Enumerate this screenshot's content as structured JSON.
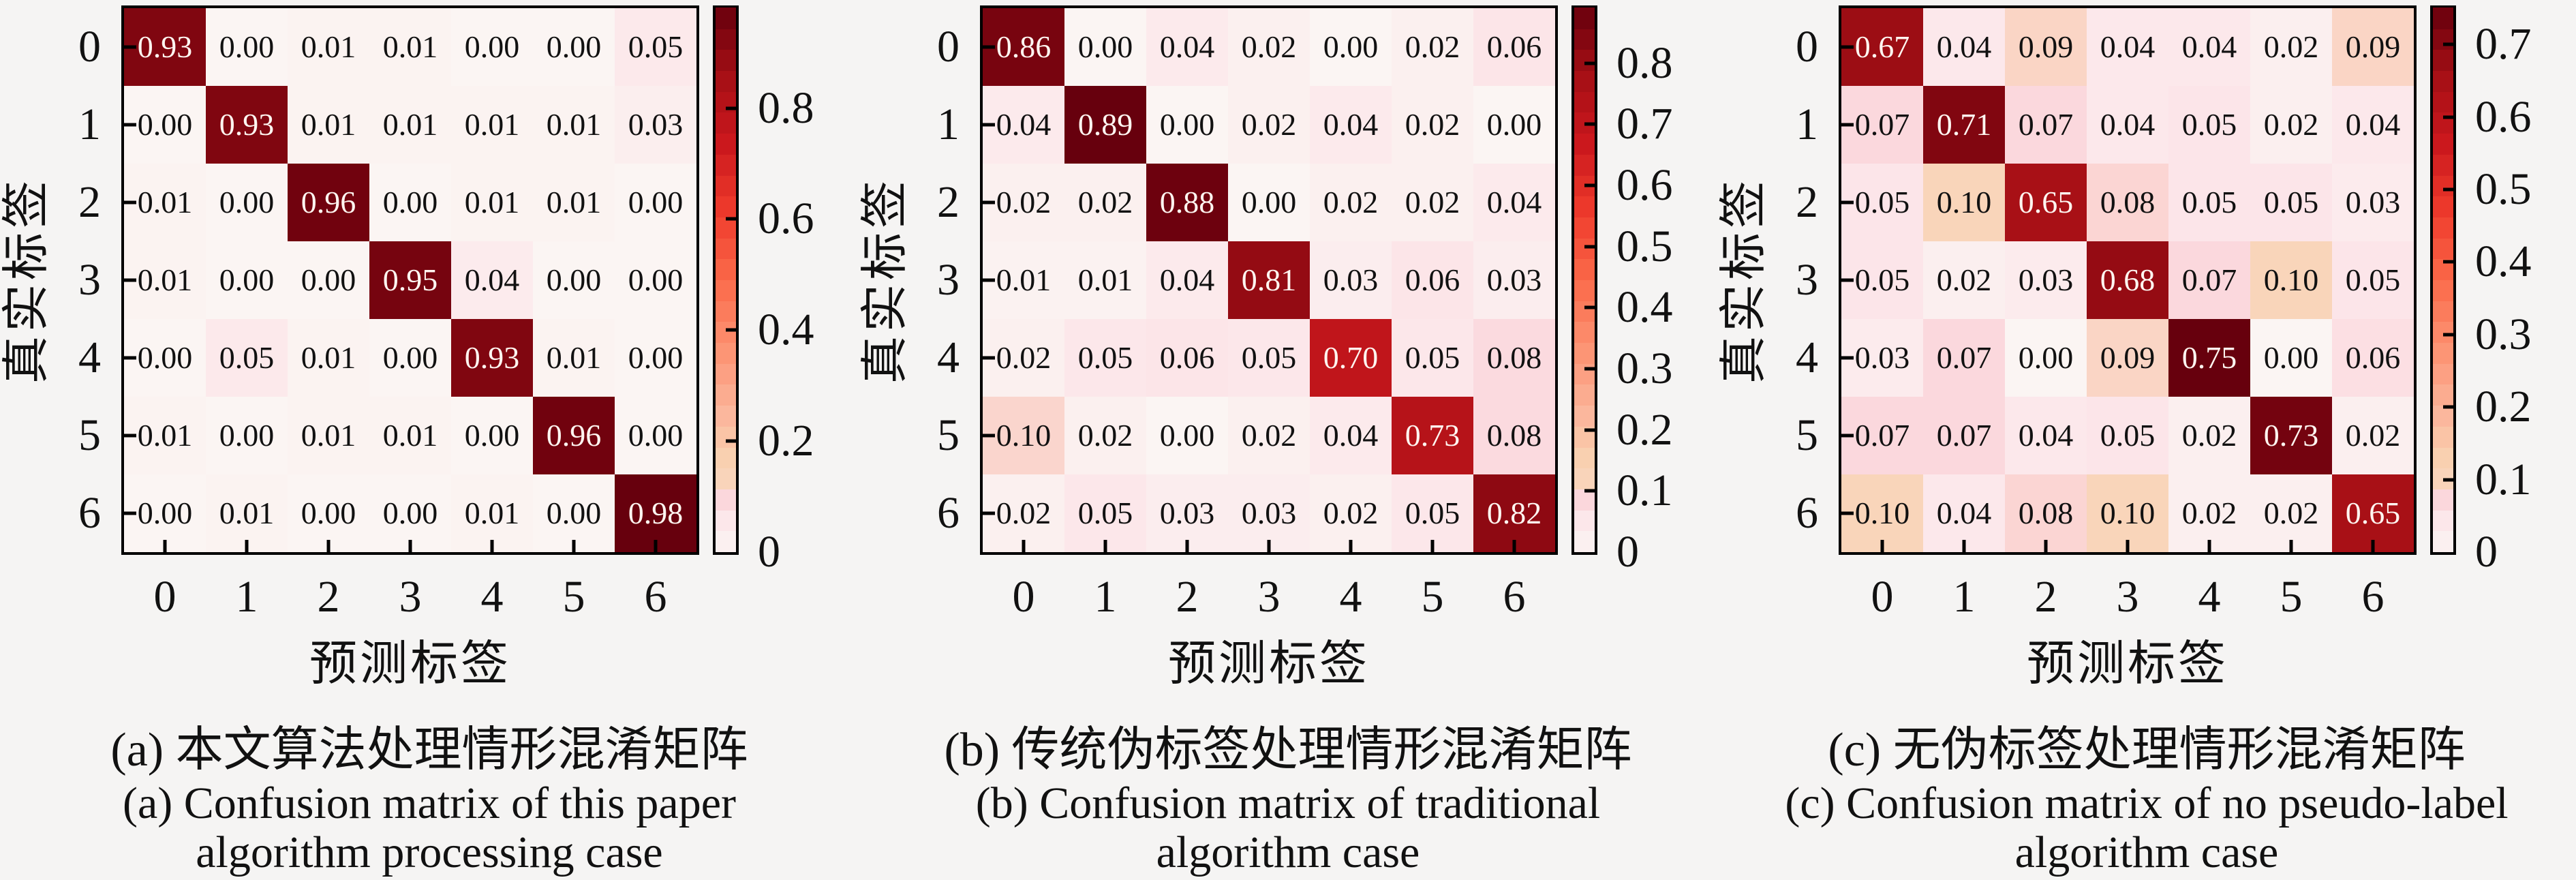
{
  "figure": {
    "background": "#f5f4f3",
    "spine_color": "#000000",
    "cell_text_dark": "#111111",
    "cell_text_light": "#fff5f0",
    "colormap_stops": [
      [
        0.0,
        "#fbf5f3"
      ],
      [
        0.07,
        "#fce4e8"
      ],
      [
        0.1,
        "#fbd5da"
      ],
      [
        0.13,
        "#f9d5bb"
      ],
      [
        0.18,
        "#f9cfae"
      ],
      [
        0.25,
        "#fbb79d"
      ],
      [
        0.375,
        "#fc9272"
      ],
      [
        0.5,
        "#fb6a4a"
      ],
      [
        0.625,
        "#ef3b2c"
      ],
      [
        0.75,
        "#cb181d"
      ],
      [
        0.875,
        "#a50f15"
      ],
      [
        1.0,
        "#67000d"
      ]
    ]
  },
  "chart_data": [
    {
      "type": "heatmap",
      "panel": "a",
      "caption_zh": "(a) 本文算法处理情形混淆矩阵",
      "caption_en": [
        "(a) Confusion matrix of this paper",
        "algorithm processing case"
      ],
      "xlabel": "预测标签",
      "ylabel": "真实标签",
      "x_ticklabels": [
        "0",
        "1",
        "2",
        "3",
        "4",
        "5",
        "6"
      ],
      "y_ticklabels": [
        "0",
        "1",
        "2",
        "3",
        "4",
        "5",
        "6"
      ],
      "vmin": 0,
      "vmax": 0.98,
      "colormap": "white-to-dark-red",
      "legend_position": "right-colorbar",
      "grid": false,
      "colorbar_ticks": [
        {
          "value": 0.0,
          "label": "0"
        },
        {
          "value": 0.2,
          "label": "0.2"
        },
        {
          "value": 0.4,
          "label": "0.4"
        },
        {
          "value": 0.6,
          "label": "0.6"
        },
        {
          "value": 0.8,
          "label": "0.8"
        }
      ],
      "values": [
        [
          0.93,
          0.0,
          0.01,
          0.01,
          0.0,
          0.0,
          0.05
        ],
        [
          0.0,
          0.93,
          0.01,
          0.01,
          0.01,
          0.01,
          0.03
        ],
        [
          0.01,
          0.0,
          0.96,
          0.0,
          0.01,
          0.01,
          0.0
        ],
        [
          0.01,
          0.0,
          0.0,
          0.95,
          0.04,
          0.0,
          0.0
        ],
        [
          0.0,
          0.05,
          0.01,
          0.0,
          0.93,
          0.01,
          0.0
        ],
        [
          0.01,
          0.0,
          0.01,
          0.01,
          0.0,
          0.96,
          0.0
        ],
        [
          0.0,
          0.01,
          0.0,
          0.0,
          0.01,
          0.0,
          0.98
        ]
      ]
    },
    {
      "type": "heatmap",
      "panel": "b",
      "caption_zh": "(b) 传统伪标签处理情形混淆矩阵",
      "caption_en": [
        "(b) Confusion matrix of traditional",
        "algorithm case"
      ],
      "xlabel": "预测标签",
      "ylabel": "真实标签",
      "x_ticklabels": [
        "0",
        "1",
        "2",
        "3",
        "4",
        "5",
        "6"
      ],
      "y_ticklabels": [
        "0",
        "1",
        "2",
        "3",
        "4",
        "5",
        "6"
      ],
      "vmin": 0,
      "vmax": 0.89,
      "colormap": "white-to-dark-red",
      "legend_position": "right-colorbar",
      "grid": false,
      "colorbar_ticks": [
        {
          "value": 0.0,
          "label": "0"
        },
        {
          "value": 0.1,
          "label": "0.1"
        },
        {
          "value": 0.2,
          "label": "0.2"
        },
        {
          "value": 0.3,
          "label": "0.3"
        },
        {
          "value": 0.4,
          "label": "0.4"
        },
        {
          "value": 0.5,
          "label": "0.5"
        },
        {
          "value": 0.6,
          "label": "0.6"
        },
        {
          "value": 0.7,
          "label": "0.7"
        },
        {
          "value": 0.8,
          "label": "0.8"
        }
      ],
      "values": [
        [
          0.86,
          0.0,
          0.04,
          0.02,
          0.0,
          0.02,
          0.06
        ],
        [
          0.04,
          0.89,
          0.0,
          0.02,
          0.04,
          0.02,
          0.0
        ],
        [
          0.02,
          0.02,
          0.88,
          0.0,
          0.02,
          0.02,
          0.04
        ],
        [
          0.01,
          0.01,
          0.04,
          0.81,
          0.03,
          0.06,
          0.03
        ],
        [
          0.02,
          0.05,
          0.06,
          0.05,
          0.7,
          0.05,
          0.08
        ],
        [
          0.1,
          0.02,
          0.0,
          0.02,
          0.04,
          0.73,
          0.08
        ],
        [
          0.02,
          0.05,
          0.03,
          0.03,
          0.02,
          0.05,
          0.82
        ]
      ]
    },
    {
      "type": "heatmap",
      "panel": "c",
      "caption_zh": "(c) 无伪标签处理情形混淆矩阵",
      "caption_en": [
        "(c) Confusion matrix of no pseudo-label",
        "algorithm case"
      ],
      "xlabel": "预测标签",
      "ylabel": "真实标签",
      "x_ticklabels": [
        "0",
        "1",
        "2",
        "3",
        "4",
        "5",
        "6"
      ],
      "y_ticklabels": [
        "0",
        "1",
        "2",
        "3",
        "4",
        "5",
        "6"
      ],
      "vmin": 0,
      "vmax": 0.75,
      "colormap": "white-to-dark-red",
      "legend_position": "right-colorbar",
      "grid": false,
      "colorbar_ticks": [
        {
          "value": 0.0,
          "label": "0"
        },
        {
          "value": 0.1,
          "label": "0.1"
        },
        {
          "value": 0.2,
          "label": "0.2"
        },
        {
          "value": 0.3,
          "label": "0.3"
        },
        {
          "value": 0.4,
          "label": "0.4"
        },
        {
          "value": 0.5,
          "label": "0.5"
        },
        {
          "value": 0.6,
          "label": "0.6"
        },
        {
          "value": 0.7,
          "label": "0.7"
        }
      ],
      "values": [
        [
          0.67,
          0.04,
          0.09,
          0.04,
          0.04,
          0.02,
          0.09
        ],
        [
          0.07,
          0.71,
          0.07,
          0.04,
          0.05,
          0.02,
          0.04
        ],
        [
          0.05,
          0.1,
          0.65,
          0.08,
          0.05,
          0.05,
          0.03
        ],
        [
          0.05,
          0.02,
          0.03,
          0.68,
          0.07,
          0.1,
          0.05
        ],
        [
          0.03,
          0.07,
          0.0,
          0.09,
          0.75,
          0.0,
          0.06
        ],
        [
          0.07,
          0.07,
          0.04,
          0.05,
          0.02,
          0.73,
          0.02
        ],
        [
          0.1,
          0.04,
          0.08,
          0.1,
          0.02,
          0.02,
          0.65
        ]
      ]
    }
  ]
}
